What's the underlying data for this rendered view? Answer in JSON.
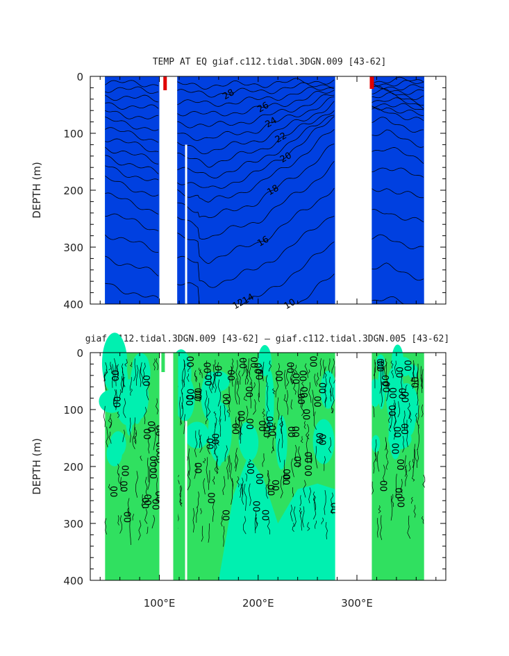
{
  "chart_data": [
    {
      "type": "contour",
      "title": "TEMP AT EQ giaf.c112.tidal.3DGN.009 [43-62]",
      "xlabel": "",
      "ylabel": "DEPTH (m)",
      "xlim": [
        30,
        390
      ],
      "ylim": [
        400,
        0
      ],
      "y_ticks": [
        "0",
        "100",
        "200",
        "300",
        "400"
      ],
      "x_ticks": [
        "100°E",
        "200°E",
        "300°E"
      ],
      "x_tick_values": [
        100,
        200,
        300
      ],
      "y_tick_values": [
        0,
        100,
        200,
        300,
        400
      ],
      "contour_labels": [
        "28",
        "26",
        "24",
        "22",
        "20",
        "18",
        "16",
        "14",
        "12",
        "10"
      ],
      "data_ranges_lon": [
        [
          45,
          100
        ],
        [
          118,
          278
        ],
        [
          315,
          368
        ]
      ],
      "thermocline_depth_at": [
        {
          "lon": 45,
          "t20_depth": 140
        },
        {
          "lon": 150,
          "t20_depth": 200
        },
        {
          "lon": 200,
          "t20_depth": 170
        },
        {
          "lon": 250,
          "t20_depth": 110
        },
        {
          "lon": 278,
          "t20_depth": 70
        },
        {
          "lon": 330,
          "t20_depth": 60
        },
        {
          "lon": 368,
          "t20_depth": 80
        }
      ]
    },
    {
      "type": "contour",
      "title": "giaf.c112.tidal.3DGN.009 [43-62] — giaf.c112.tidal.3DGN.005 [43-62]",
      "xlabel": "",
      "ylabel": "DEPTH (m)",
      "xlim": [
        30,
        390
      ],
      "ylim": [
        400,
        0
      ],
      "y_ticks": [
        "0",
        "100",
        "200",
        "300",
        "400"
      ],
      "x_ticks": [
        "100°E",
        "200°E",
        "300°E"
      ],
      "x_tick_values": [
        100,
        200,
        300
      ],
      "y_tick_values": [
        0,
        100,
        200,
        300,
        400
      ],
      "contour_labels": [
        "00"
      ],
      "data_ranges_lon": [
        [
          45,
          100
        ],
        [
          118,
          278
        ],
        [
          315,
          368
        ]
      ]
    }
  ],
  "colors": {
    "t28": "#e00000",
    "t27": "#ff3a00",
    "t26": "#ff6a10",
    "t25": "#ff8a20",
    "t24": "#ffa030",
    "t23": "#ffd040",
    "t22": "#ffff30",
    "t21": "#c8f000",
    "t20": "#80e000",
    "t19": "#30d000",
    "t18": "#00e060",
    "t17": "#00f0a0",
    "t16": "#00ffe0",
    "t15": "#00ffff",
    "t14": "#00e8ff",
    "t13": "#00c8ff",
    "t12": "#00a8ff",
    "t11": "#0088ff",
    "t10": "#0060f0",
    "t9": "#0040e0",
    "diff_main": "#30e060",
    "diff_alt": "#00f0b0"
  }
}
